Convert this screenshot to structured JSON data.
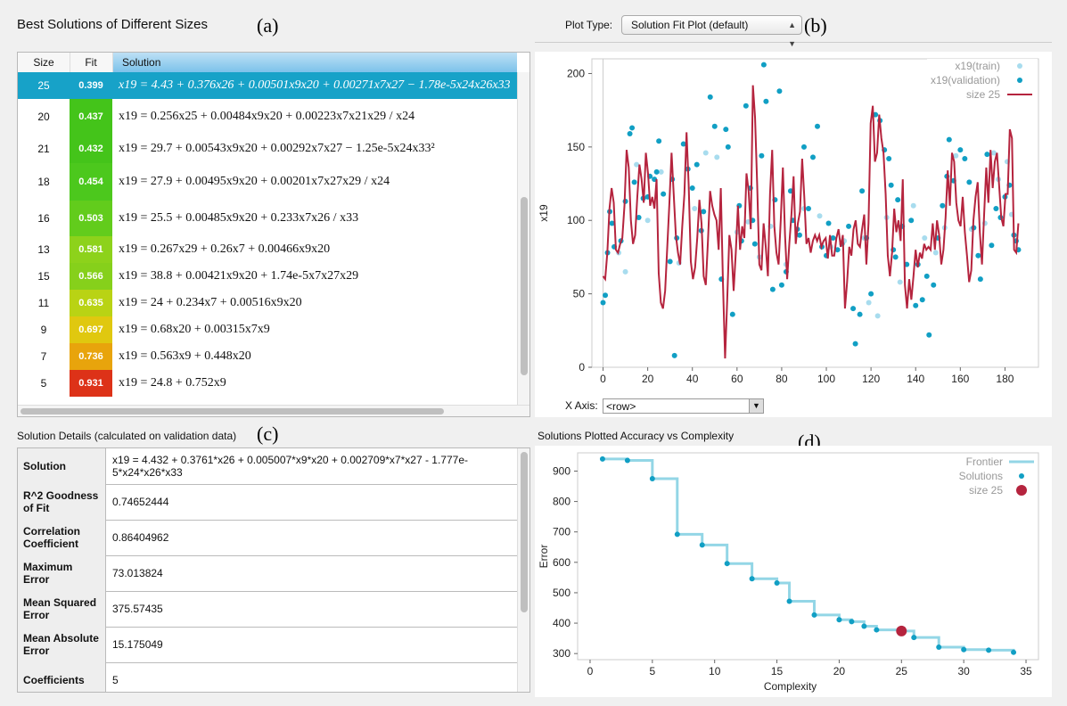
{
  "panel_a": {
    "title": "Best Solutions of Different Sizes",
    "label": "(a)",
    "columns": [
      "Size",
      "Fit",
      "Solution"
    ],
    "rows": [
      {
        "size": "25",
        "fit": "0.399",
        "color": "#17a2c8",
        "solution": "x19 = 4.43 + 0.376x26 + 0.00501x9x20 + 0.00271x7x27 − 1.78e-5x24x26x33",
        "selected": true
      },
      {
        "size": "20",
        "fit": "0.437",
        "color": "#44c41a",
        "solution": "x19 = 0.256x25 + 0.00484x9x20 + 0.00223x7x21x29 / x24"
      },
      {
        "size": "21",
        "fit": "0.432",
        "color": "#44c41a",
        "solution": "x19 = 29.7 + 0.00543x9x20 + 0.00292x7x27 − 1.25e-5x24x33²"
      },
      {
        "size": "18",
        "fit": "0.454",
        "color": "#4cc81d",
        "solution": "x19 = 27.9 + 0.00495x9x20 + 0.00201x7x27x29 / x24"
      },
      {
        "size": "16",
        "fit": "0.503",
        "color": "#62cc1c",
        "solution": "x19 = 25.5 + 0.00485x9x20 + 0.233x7x26 / x33"
      },
      {
        "size": "13",
        "fit": "0.581",
        "color": "#8dd21b",
        "solution": "x19 = 0.267x29 + 0.26x7 + 0.00466x9x20"
      },
      {
        "size": "15",
        "fit": "0.566",
        "color": "#86d01b",
        "solution": "x19 = 38.8 + 0.00421x9x20 + 1.74e-5x7x27x29"
      },
      {
        "size": "11",
        "fit": "0.635",
        "color": "#b9d314",
        "solution": "x19 = 24 + 0.234x7 + 0.00516x9x20"
      },
      {
        "size": "9",
        "fit": "0.697",
        "color": "#e0c80f",
        "solution": "x19 = 0.68x20 + 0.00315x7x9"
      },
      {
        "size": "7",
        "fit": "0.736",
        "color": "#e8a40c",
        "solution": "x19 = 0.563x9 + 0.448x20"
      },
      {
        "size": "5",
        "fit": "0.931",
        "color": "#dd3218",
        "solution": "x19 = 24.8 + 0.752x9"
      }
    ]
  },
  "panel_b": {
    "label": "(b)",
    "plot_type_label": "Plot Type:",
    "plot_type_value": "Solution Fit Plot (default)",
    "x_axis_label": "X Axis:",
    "x_axis_value": "<row>"
  },
  "panel_c": {
    "title": "Solution Details (calculated on validation data)",
    "label": "(c)",
    "rows": [
      {
        "key": "Solution",
        "value": "x19 = 4.432 + 0.3761*x26 + 0.005007*x9*x20 + 0.002709*x7*x27 - 1.777e-5*x24*x26*x33"
      },
      {
        "key": "R^2 Goodness of Fit",
        "value": "0.74652444"
      },
      {
        "key": "Correlation Coefficient",
        "value": "0.86404962"
      },
      {
        "key": "Maximum Error",
        "value": "73.013824"
      },
      {
        "key": "Mean Squared Error",
        "value": "375.57435"
      },
      {
        "key": "Mean Absolute Error",
        "value": "15.175049"
      },
      {
        "key": "Coefficients",
        "value": "5"
      }
    ]
  },
  "panel_d": {
    "title": "Solutions Plotted Accuracy vs Complexity",
    "label": "(d)"
  },
  "chart_data": [
    {
      "type": "line",
      "ylabel": "x19",
      "xlim": [
        -5,
        195
      ],
      "ylim": [
        0,
        210
      ],
      "xticks": [
        0,
        20,
        40,
        60,
        80,
        100,
        120,
        140,
        160,
        180
      ],
      "yticks": [
        0,
        50,
        100,
        150,
        200
      ],
      "legend": [
        "x19(train)",
        "x19(validation)",
        "size 25"
      ],
      "legend_position": "top-right",
      "colors": {
        "train": "#a8dcee",
        "validation": "#119fc4",
        "fit": "#b5243e"
      },
      "fit_series": [
        62,
        60,
        78,
        108,
        122,
        112,
        80,
        78,
        84,
        88,
        110,
        148,
        136,
        100,
        84,
        90,
        116,
        138,
        128,
        112,
        146,
        132,
        110,
        116,
        108,
        128,
        64,
        44,
        40,
        52,
        82,
        112,
        146,
        118,
        90,
        78,
        70,
        96,
        118,
        160,
        124,
        72,
        60,
        68,
        88,
        114,
        98,
        62,
        56,
        86,
        120,
        110,
        104,
        100,
        80,
        122,
        58,
        6,
        46,
        90,
        80,
        52,
        78,
        110,
        80,
        96,
        88,
        132,
        120,
        94,
        192,
        170,
        124,
        70,
        66,
        98,
        82,
        62,
        118,
        148,
        96,
        78,
        70,
        100,
        136,
        90,
        60,
        84,
        104,
        130,
        84,
        98,
        106,
        142,
        116,
        84,
        88,
        78,
        86,
        90,
        86,
        90,
        82,
        86,
        88,
        74,
        90,
        76,
        76,
        88,
        94,
        82,
        90,
        40,
        58,
        82,
        76,
        94,
        100,
        84,
        82,
        94,
        104,
        70,
        98,
        166,
        178,
        140,
        146,
        172,
        156,
        146,
        118,
        76,
        62,
        78,
        108,
        92,
        100,
        86,
        128,
        56,
        40,
        60,
        46,
        62,
        80,
        68,
        78,
        74,
        84,
        80,
        82,
        80,
        98,
        80,
        100,
        90,
        70,
        80,
        102,
        134,
        110,
        146,
        140,
        112,
        100,
        96,
        116,
        92,
        76,
        58,
        66,
        100,
        116,
        126,
        92,
        70,
        104,
        136,
        112,
        148,
        122,
        140,
        146,
        124,
        102,
        96,
        118,
        118,
        162,
        156,
        80,
        78,
        98
      ],
      "validation_points": [
        [
          0,
          44
        ],
        [
          1,
          49
        ],
        [
          2,
          78
        ],
        [
          3,
          106
        ],
        [
          4,
          98
        ],
        [
          5,
          82
        ],
        [
          8,
          86
        ],
        [
          10,
          113
        ],
        [
          12,
          159
        ],
        [
          13,
          163
        ],
        [
          14,
          126
        ],
        [
          16,
          102
        ],
        [
          18,
          115
        ],
        [
          20,
          116
        ],
        [
          21,
          130
        ],
        [
          23,
          128
        ],
        [
          24,
          133
        ],
        [
          25,
          154
        ],
        [
          27,
          118
        ],
        [
          30,
          72
        ],
        [
          31,
          128
        ],
        [
          32,
          8
        ],
        [
          33,
          88
        ],
        [
          36,
          152
        ],
        [
          38,
          135
        ],
        [
          40,
          122
        ],
        [
          42,
          138
        ],
        [
          44,
          93
        ],
        [
          45,
          106
        ],
        [
          48,
          184
        ],
        [
          50,
          164
        ],
        [
          53,
          60
        ],
        [
          55,
          162
        ],
        [
          56,
          150
        ],
        [
          58,
          36
        ],
        [
          61,
          110
        ],
        [
          62,
          86
        ],
        [
          64,
          178
        ],
        [
          66,
          122
        ],
        [
          67,
          100
        ],
        [
          68,
          84
        ],
        [
          71,
          144
        ],
        [
          72,
          206
        ],
        [
          73,
          181
        ],
        [
          76,
          53
        ],
        [
          77,
          114
        ],
        [
          79,
          188
        ],
        [
          80,
          56
        ],
        [
          82,
          65
        ],
        [
          84,
          120
        ],
        [
          85,
          100
        ],
        [
          87,
          94
        ],
        [
          88,
          90
        ],
        [
          90,
          150
        ],
        [
          92,
          108
        ],
        [
          94,
          143
        ],
        [
          96,
          164
        ],
        [
          98,
          82
        ],
        [
          100,
          76
        ],
        [
          101,
          98
        ],
        [
          103,
          88
        ],
        [
          105,
          80
        ],
        [
          107,
          84
        ],
        [
          110,
          96
        ],
        [
          112,
          40
        ],
        [
          113,
          16
        ],
        [
          115,
          36
        ],
        [
          116,
          120
        ],
        [
          118,
          88
        ],
        [
          120,
          50
        ],
        [
          122,
          172
        ],
        [
          124,
          168
        ],
        [
          126,
          148
        ],
        [
          128,
          142
        ],
        [
          129,
          124
        ],
        [
          130,
          80
        ],
        [
          131,
          75
        ],
        [
          132,
          114
        ],
        [
          134,
          96
        ],
        [
          136,
          70
        ],
        [
          138,
          100
        ],
        [
          140,
          42
        ],
        [
          141,
          70
        ],
        [
          143,
          46
        ],
        [
          145,
          62
        ],
        [
          146,
          22
        ],
        [
          148,
          56
        ],
        [
          150,
          88
        ],
        [
          152,
          110
        ],
        [
          154,
          130
        ],
        [
          155,
          155
        ],
        [
          157,
          127
        ],
        [
          160,
          148
        ],
        [
          162,
          142
        ],
        [
          164,
          126
        ],
        [
          166,
          95
        ],
        [
          168,
          76
        ],
        [
          169,
          60
        ],
        [
          172,
          145
        ],
        [
          174,
          83
        ],
        [
          176,
          108
        ],
        [
          178,
          102
        ],
        [
          180,
          116
        ],
        [
          182,
          124
        ],
        [
          184,
          90
        ],
        [
          185,
          86
        ],
        [
          186,
          80
        ]
      ],
      "train_points": [
        [
          7,
          78
        ],
        [
          10,
          65
        ],
        [
          15,
          138
        ],
        [
          20,
          100
        ],
        [
          26,
          133
        ],
        [
          34,
          71
        ],
        [
          41,
          108
        ],
        [
          46,
          146
        ],
        [
          51,
          143
        ],
        [
          60,
          92
        ],
        [
          65,
          99
        ],
        [
          70,
          75
        ],
        [
          75,
          96
        ],
        [
          82,
          70
        ],
        [
          90,
          108
        ],
        [
          97,
          103
        ],
        [
          102,
          82
        ],
        [
          108,
          86
        ],
        [
          117,
          88
        ],
        [
          119,
          44
        ],
        [
          123,
          35
        ],
        [
          127,
          102
        ],
        [
          133,
          58
        ],
        [
          139,
          110
        ],
        [
          144,
          88
        ],
        [
          149,
          78
        ],
        [
          153,
          95
        ],
        [
          158,
          144
        ],
        [
          165,
          94
        ],
        [
          171,
          98
        ],
        [
          175,
          146
        ],
        [
          177,
          128
        ],
        [
          181,
          140
        ],
        [
          183,
          104
        ]
      ]
    },
    {
      "type": "line",
      "xlabel": "Complexity",
      "ylabel": "Error",
      "xlim": [
        -1,
        36
      ],
      "ylim": [
        280,
        960
      ],
      "xticks": [
        0,
        5,
        10,
        15,
        20,
        25,
        30,
        35
      ],
      "yticks": [
        300,
        400,
        500,
        600,
        700,
        800,
        900
      ],
      "legend": [
        "Frontier",
        "Solutions",
        "size 25"
      ],
      "legend_position": "top-right",
      "colors": {
        "frontier": "#93d6e6",
        "solutions": "#119fc4",
        "highlight": "#b5243e"
      },
      "solutions": [
        [
          1,
          940
        ],
        [
          3,
          935
        ],
        [
          5,
          875
        ],
        [
          7,
          692
        ],
        [
          9,
          657
        ],
        [
          11,
          596
        ],
        [
          13,
          546
        ],
        [
          15,
          532
        ],
        [
          16,
          472
        ],
        [
          18,
          427
        ],
        [
          20,
          411
        ],
        [
          21,
          405
        ],
        [
          22,
          390
        ],
        [
          23,
          378
        ],
        [
          25,
          374
        ],
        [
          26,
          353
        ],
        [
          28,
          321
        ],
        [
          30,
          313
        ],
        [
          32,
          311
        ],
        [
          34,
          304
        ]
      ],
      "highlight": [
        25,
        374
      ]
    }
  ]
}
